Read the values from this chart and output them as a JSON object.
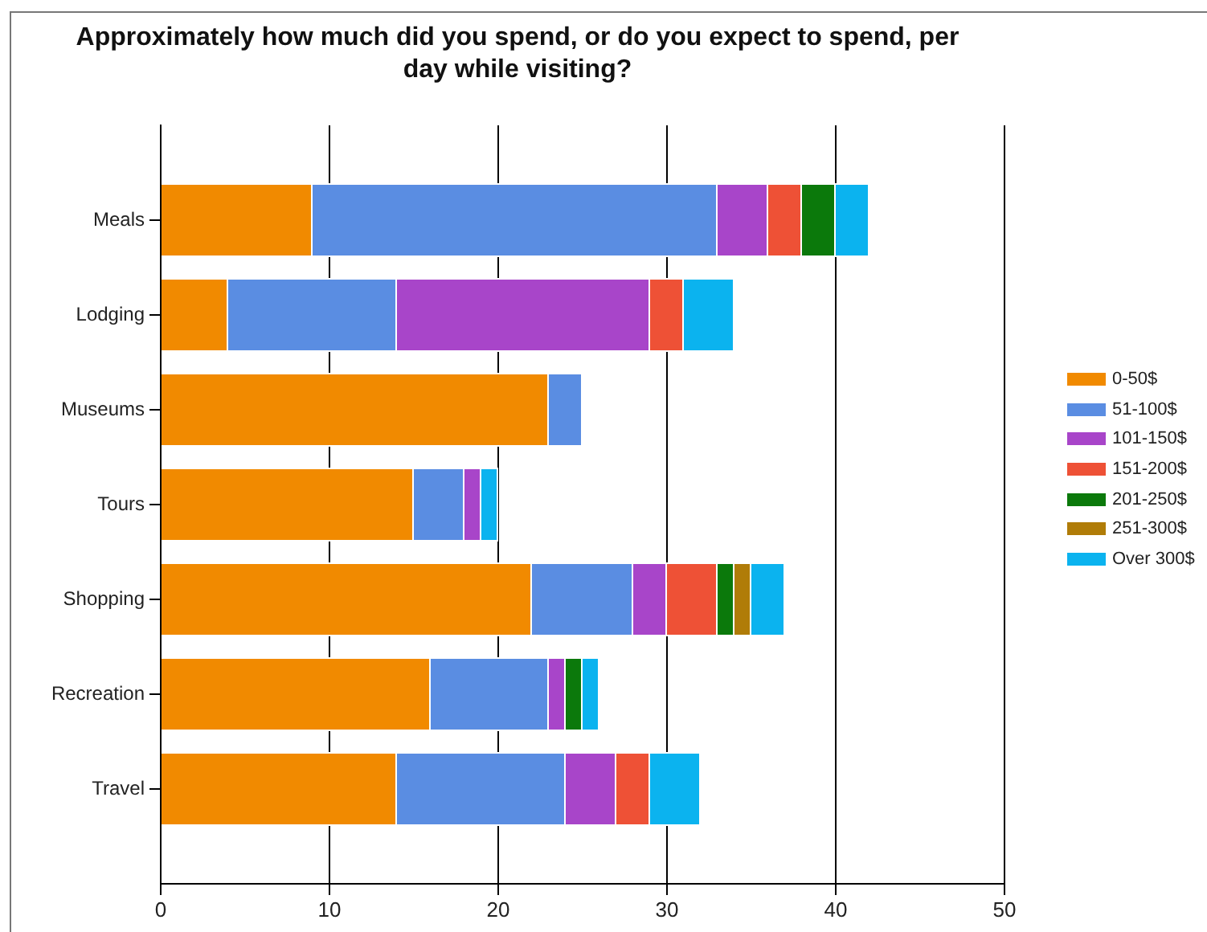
{
  "chart_data": {
    "type": "bar",
    "orientation": "horizontal",
    "stacked": true,
    "title": "Approximately how much did you spend, or do you expect to spend, per day while visiting?",
    "categories": [
      "Meals",
      "Lodging",
      "Museums",
      "Tours",
      "Shopping",
      "Recreation",
      "Travel"
    ],
    "series": [
      {
        "name": "0-50$",
        "color": "#f18a00",
        "values": [
          9,
          4,
          23,
          15,
          22,
          16,
          14
        ]
      },
      {
        "name": "51-100$",
        "color": "#5a8de2",
        "values": [
          24,
          10,
          2,
          3,
          6,
          7,
          10
        ]
      },
      {
        "name": "101-150$",
        "color": "#a845c9",
        "values": [
          3,
          15,
          0,
          1,
          2,
          1,
          3
        ]
      },
      {
        "name": "151-200$",
        "color": "#ee5136",
        "values": [
          2,
          2,
          0,
          0,
          3,
          0,
          2
        ]
      },
      {
        "name": "201-250$",
        "color": "#0b790b",
        "values": [
          2,
          0,
          0,
          0,
          1,
          1,
          0
        ]
      },
      {
        "name": "251-300$",
        "color": "#b07c08",
        "values": [
          0,
          0,
          0,
          0,
          1,
          0,
          0
        ]
      },
      {
        "name": "Over 300$",
        "color": "#0bb3ef",
        "values": [
          2,
          3,
          0,
          1,
          2,
          1,
          3
        ]
      }
    ],
    "xlim": [
      0,
      50
    ],
    "xticks": [
      0,
      10,
      20,
      30,
      40,
      50
    ],
    "grid": "x",
    "legend": "right"
  }
}
